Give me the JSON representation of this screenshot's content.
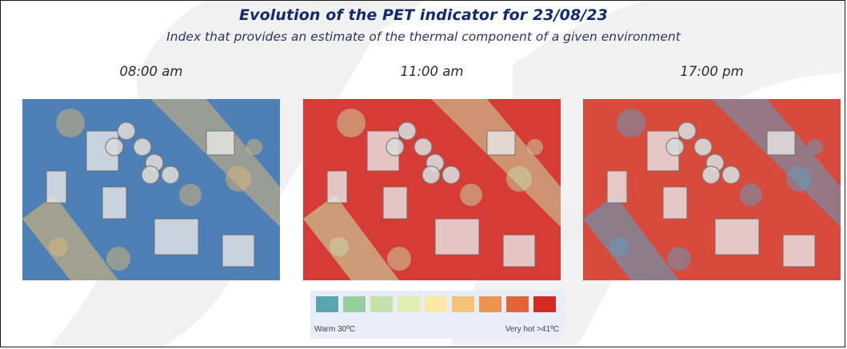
{
  "title": "Evolution of the PET indicator for 23/08/23",
  "subtitle": "Index that provides an estimate of the thermal component of a given environment",
  "panels": [
    {
      "time": "08:00 am",
      "dominant": "#4e7fb5",
      "accent": "#d9b77a"
    },
    {
      "time": "11:00 am",
      "dominant": "#d63b35",
      "accent": "#c8dca6"
    },
    {
      "time": "17:00 pm",
      "dominant": "#d84a3c",
      "accent": "#5f9ec0"
    }
  ],
  "legend": {
    "colors": [
      "#5aa6ae",
      "#96cf9f",
      "#c3e1a8",
      "#e2eeb0",
      "#fbe7a6",
      "#f5c27a",
      "#ee9451",
      "#e36437",
      "#d52a24"
    ],
    "low_label": "Warm 30ºC",
    "high_label": "Very hot >41ºC"
  }
}
